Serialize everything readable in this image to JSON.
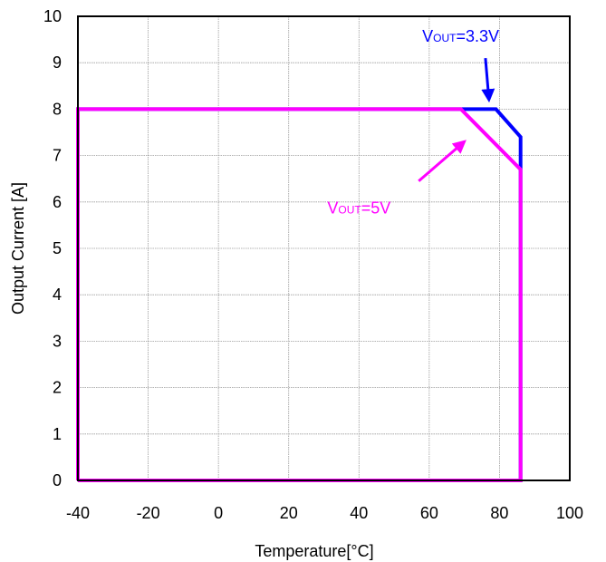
{
  "chart_data": {
    "type": "line",
    "title": "",
    "xlabel": "Temperature[°C]",
    "ylabel": "Output Current [A]",
    "xlim": [
      -40,
      100
    ],
    "ylim": [
      0,
      10
    ],
    "x_ticks": [
      -40,
      -20,
      0,
      20,
      40,
      60,
      80,
      100
    ],
    "y_ticks": [
      0,
      1,
      2,
      3,
      4,
      5,
      6,
      7,
      8,
      9,
      10
    ],
    "grid": true,
    "series": [
      {
        "name": "VOUT=3.3V",
        "color": "#0000ff",
        "points": [
          [
            -40,
            0
          ],
          [
            -40,
            8
          ],
          [
            79,
            8
          ],
          [
            86,
            7.4
          ],
          [
            86,
            0
          ],
          [
            -40,
            0
          ]
        ]
      },
      {
        "name": "VOUT=5V",
        "color": "#ff00ff",
        "points": [
          [
            -40,
            0
          ],
          [
            -40,
            8
          ],
          [
            69,
            8
          ],
          [
            86,
            6.7
          ],
          [
            86,
            0
          ],
          [
            -40,
            0
          ]
        ]
      }
    ],
    "annotations": [
      {
        "main": "V",
        "sub": "OUT",
        "rest": "=3.3V",
        "color": "#0000ff",
        "text_at": [
          58,
          9.45
        ],
        "arrow_from": [
          76,
          9.1
        ],
        "arrow_to": [
          77,
          8.2
        ]
      },
      {
        "main": "V",
        "sub": "OUT",
        "rest": "=5V",
        "color": "#ff00ff",
        "text_at": [
          31,
          5.75
        ],
        "arrow_from": [
          57,
          6.45
        ],
        "arrow_to": [
          70,
          7.3
        ]
      }
    ]
  }
}
